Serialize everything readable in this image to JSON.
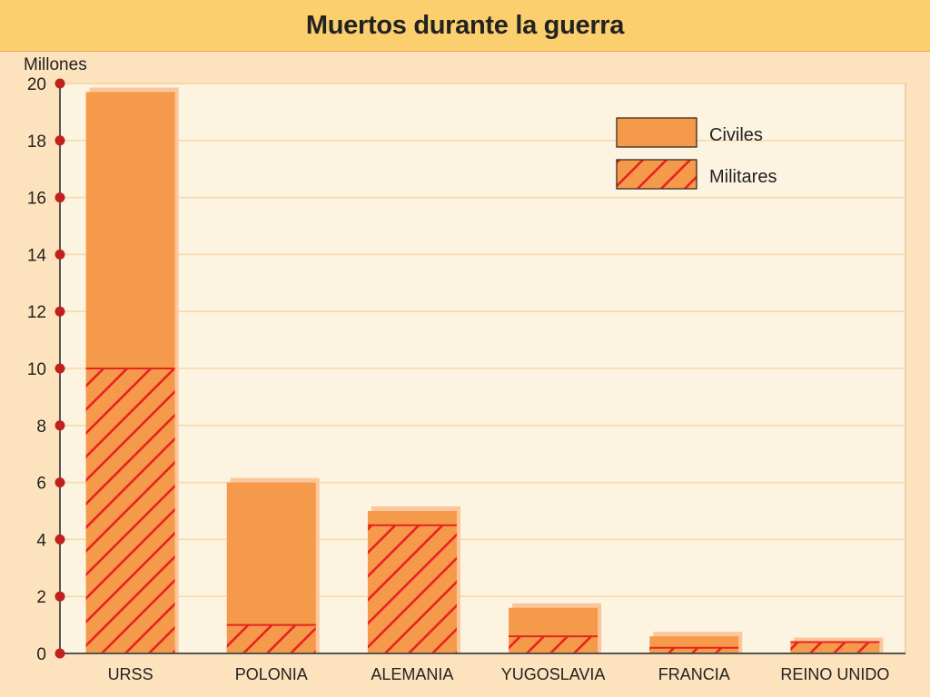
{
  "header": {
    "title": "Muertos durante la guerra"
  },
  "chart_data": {
    "type": "bar",
    "stacked": true,
    "title": "Muertos durante la guerra",
    "ylabel": "Millones",
    "ylim": [
      0,
      20
    ],
    "yticks": [
      0,
      2,
      4,
      6,
      8,
      10,
      12,
      14,
      16,
      18,
      20
    ],
    "categories": [
      "URSS",
      "POLONIA",
      "ALEMANIA",
      "YUGOSLAVIA",
      "FRANCIA",
      "REINO UNIDO"
    ],
    "series": [
      {
        "name": "Militares",
        "values": [
          10,
          1,
          4.5,
          0.6,
          0.2,
          0.4
        ],
        "color": "#f59a4a",
        "pattern": "hatched-red"
      },
      {
        "name": "Civiles",
        "values": [
          9.7,
          5,
          0.5,
          1,
          0.4,
          0
        ],
        "color": "#f59a4a",
        "pattern": "solid"
      }
    ],
    "grid": true,
    "legend_position": "top-right"
  },
  "colors": {
    "background": "#fde3bd",
    "title_band": "#fbcf6e",
    "plot_background": "#fdf3e1",
    "bar_fill": "#f59a4a",
    "hatch": "#e8231f",
    "tick_dot": "#c0201e",
    "gridline": "#f7d7a8"
  }
}
